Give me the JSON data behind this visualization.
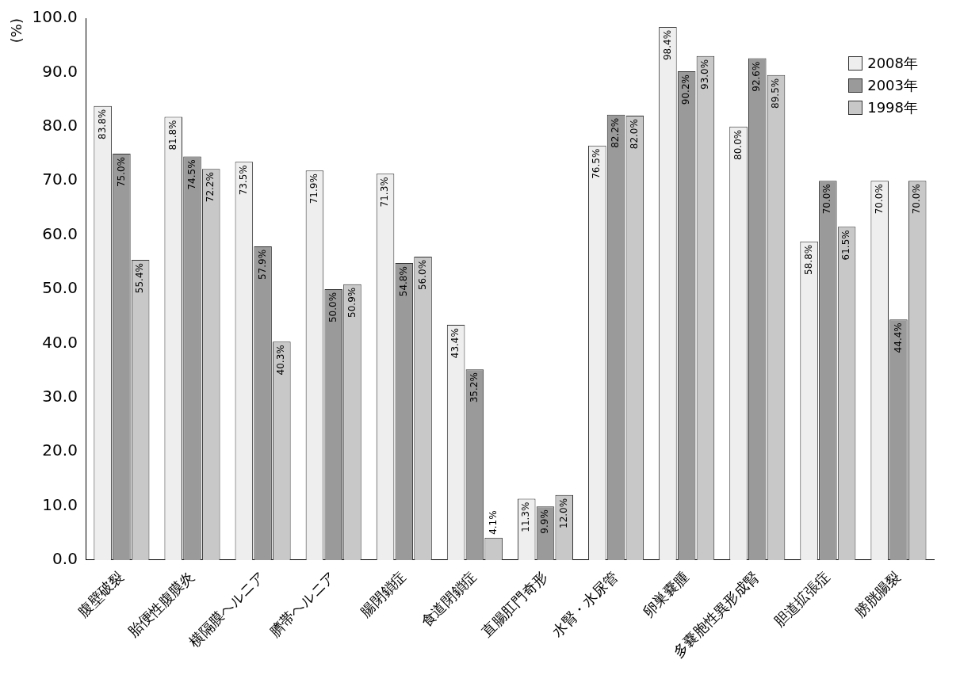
{
  "chart_data": {
    "type": "bar",
    "ylabel": "(%)",
    "categories": [
      "腹壁破裂",
      "胎便性腹膜炎",
      "横隔膜ヘルニア",
      "臍帯ヘルニア",
      "腸閉鎖症",
      "食道閉鎖症",
      "直腸肛門奇形",
      "水腎・水尿管",
      "卵巣嚢腫",
      "多嚢胞性異形成腎",
      "胆道拡張症",
      "膀胱腸裂"
    ],
    "series": [
      {
        "name": "2008年",
        "color": "#eeeeee",
        "values": [
          83.8,
          81.8,
          73.5,
          71.9,
          71.3,
          43.4,
          11.3,
          76.5,
          98.4,
          80.0,
          58.8,
          70.0
        ],
        "value_labels": [
          "83.8%",
          "81.8%",
          "73.5%",
          "71.9%",
          "71.3%",
          "43.4%",
          "11.3%",
          "76.5%",
          "98.4%",
          "80.0%",
          "58.8%",
          "70.0%"
        ]
      },
      {
        "name": "2003年",
        "color": "#9a9a9a",
        "values": [
          75.0,
          74.5,
          57.9,
          50.0,
          54.8,
          35.2,
          9.9,
          82.2,
          90.2,
          92.6,
          70.0,
          44.4
        ],
        "value_labels": [
          "75.0%",
          "74.5%",
          "57.9%",
          "50.0%",
          "54.8%",
          "35.2%",
          "9.9%",
          "82.2%",
          "90.2%",
          "92.6%",
          "70.0%",
          "44.4%"
        ]
      },
      {
        "name": "1998年",
        "color": "#c8c8c8",
        "values": [
          55.4,
          72.2,
          40.3,
          50.9,
          56.0,
          4.1,
          12.0,
          82.0,
          93.0,
          89.5,
          61.5,
          70.0
        ],
        "value_labels": [
          "55.4%",
          "72.2%",
          "40.3%",
          "50.9%",
          "56.0%",
          "4.1%",
          "12.0%",
          "82.0%",
          "93.0%",
          "89.5%",
          "61.5%",
          "70.0%"
        ]
      }
    ],
    "ylim": [
      0,
      100
    ],
    "yticks": [
      {
        "value": 0,
        "label": "0.0"
      },
      {
        "value": 10,
        "label": "10.0"
      },
      {
        "value": 20,
        "label": "20.0"
      },
      {
        "value": 30,
        "label": "30.0"
      },
      {
        "value": 40,
        "label": "40.0"
      },
      {
        "value": 50,
        "label": "50.0"
      },
      {
        "value": 60,
        "label": "60.0"
      },
      {
        "value": 70,
        "label": "70.0"
      },
      {
        "value": 80,
        "label": "80.0"
      },
      {
        "value": 90,
        "label": "90.0"
      },
      {
        "value": 100,
        "label": "100.0"
      }
    ],
    "grid": false,
    "legend": "top right"
  }
}
